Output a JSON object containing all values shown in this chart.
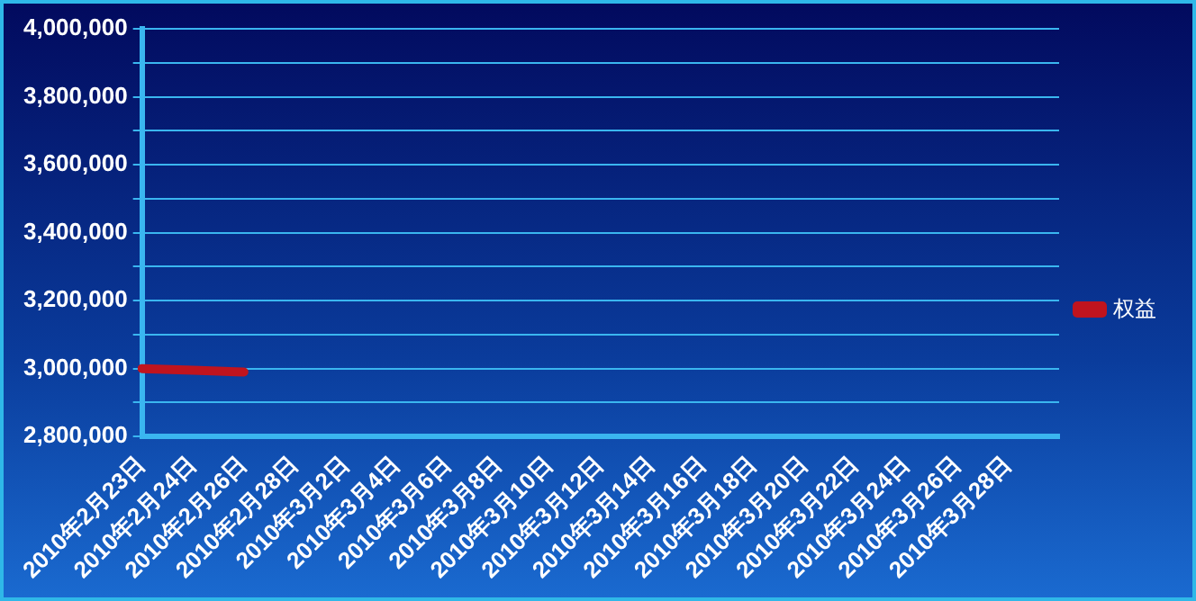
{
  "chart_data": {
    "type": "line",
    "categories": [
      "2010年2月23日",
      "2010年2月24日",
      "2010年2月26日",
      "2010年2月28日",
      "2010年3月2日",
      "2010年3月4日",
      "2010年3月6日",
      "2010年3月8日",
      "2010年3月10日",
      "2010年3月12日",
      "2010年3月14日",
      "2010年3月16日",
      "2010年3月18日",
      "2010年3月20日",
      "2010年3月22日",
      "2010年3月24日",
      "2010年3月26日",
      "2010年3月28日",
      null
    ],
    "series": [
      {
        "name": "权益",
        "color": "#c0141e",
        "values": [
          3000000,
          2995000,
          2990000,
          null,
          null,
          null,
          null,
          null,
          null,
          null,
          null,
          null,
          null,
          null,
          null,
          null,
          null,
          null,
          null
        ]
      }
    ],
    "ylim": [
      2800000,
      4000000
    ],
    "yticks": [
      {
        "value": 2800000,
        "label": "2,800,000"
      },
      {
        "value": 2900000,
        "label": null
      },
      {
        "value": 3000000,
        "label": "3,000,000"
      },
      {
        "value": 3100000,
        "label": null
      },
      {
        "value": 3200000,
        "label": "3,200,000"
      },
      {
        "value": 3300000,
        "label": null
      },
      {
        "value": 3400000,
        "label": "3,400,000"
      },
      {
        "value": 3500000,
        "label": null
      },
      {
        "value": 3600000,
        "label": "3,600,000"
      },
      {
        "value": 3700000,
        "label": null
      },
      {
        "value": 3800000,
        "label": "3,800,000"
      },
      {
        "value": 3900000,
        "label": null
      },
      {
        "value": 4000000,
        "label": "4,000,000"
      }
    ],
    "grid": "y",
    "legend": "right",
    "marker": "none",
    "line_style": "solid"
  }
}
